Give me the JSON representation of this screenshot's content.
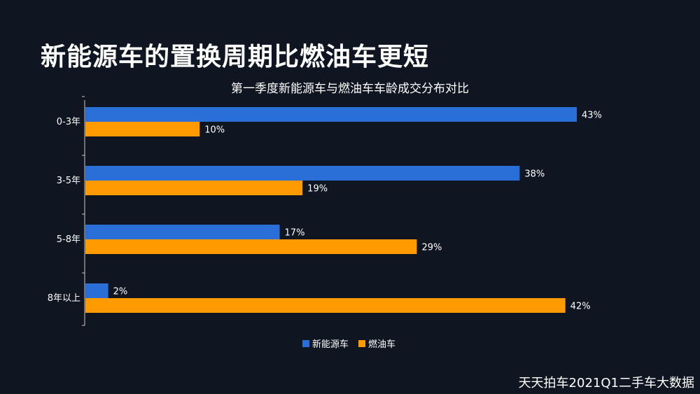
{
  "page": {
    "title": "新能源车的置换周期比燃油车更短",
    "source": "天天拍车2021Q1二手车大数据"
  },
  "chart_data": {
    "type": "bar",
    "orientation": "horizontal",
    "title": "第一季度新能源车与燃油车车龄成交分布对比",
    "categories": [
      "0-3年",
      "3-5年",
      "5-8年",
      "8年以上"
    ],
    "series": [
      {
        "name": "新能源车",
        "values": [
          43,
          38,
          17,
          2
        ],
        "labels": [
          "43%",
          "38%",
          "17%",
          "2%"
        ],
        "color": "#2a6fd8"
      },
      {
        "name": "燃油车",
        "values": [
          10,
          19,
          29,
          42
        ],
        "labels": [
          "10%",
          "19%",
          "29%",
          "42%"
        ],
        "color": "#ff9a00"
      }
    ],
    "xlim": [
      0,
      50
    ],
    "legend_position": "bottom",
    "grid": false
  },
  "colors": {
    "background": "#0f1521",
    "axis": "#cccccc",
    "text": "#ffffff"
  }
}
